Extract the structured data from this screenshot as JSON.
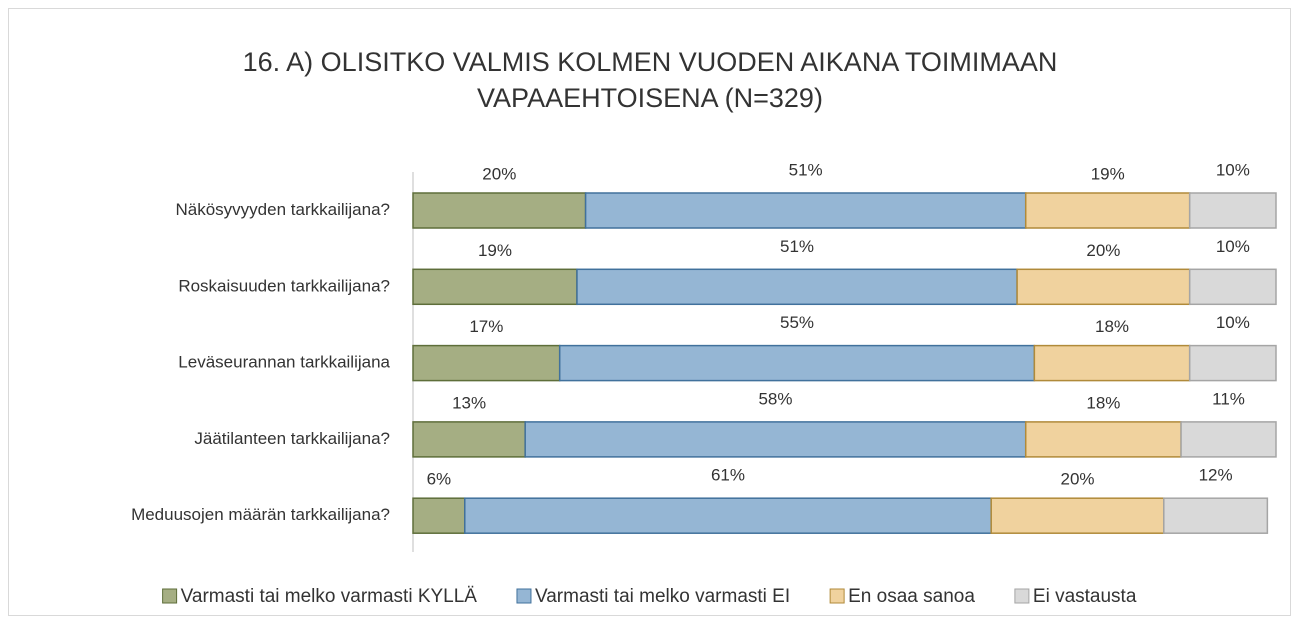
{
  "chart_data": {
    "type": "stacked_barh",
    "title": "16. A) OLISITKO VALMIS KOLMEN VUODEN AIKANA TOIMIMAAN VAPAAEHTOISENA (N=329)",
    "categories": [
      "Näkösyvyyden tarkkailijana?",
      "Roskaisuuden tarkkailijana?",
      "Leväseurannan tarkkailijana",
      "Jäätilanteen tarkkailijana?",
      "Meduusojen määrän tarkkailijana?"
    ],
    "xlim": [
      0,
      100
    ],
    "legend": "bottom",
    "series": [
      {
        "name": "Varmasti tai melko varmasti KYLLÄ",
        "color": "#a5ae83",
        "values": [
          20,
          19,
          17,
          13,
          6
        ],
        "value_labels": [
          "20%",
          "19%",
          "17%",
          "13%",
          "6%"
        ]
      },
      {
        "name": "Varmasti tai melko varmasti EI",
        "color": "#95b6d4",
        "values": [
          51,
          51,
          55,
          58,
          61
        ],
        "value_labels": [
          "51%",
          "51%",
          "55%",
          "58%",
          "61%"
        ]
      },
      {
        "name": "En osaa sanoa",
        "color": "#f0d29e",
        "values": [
          19,
          20,
          18,
          18,
          20
        ],
        "value_labels": [
          "19%",
          "20%",
          "18%",
          "18%",
          "20%"
        ]
      },
      {
        "name": "Ei vastausta",
        "color": "#d9d9d9",
        "values": [
          10,
          10,
          10,
          11,
          12
        ],
        "value_labels": [
          "10%",
          "10%",
          "10%",
          "11%",
          "12%"
        ]
      }
    ]
  }
}
